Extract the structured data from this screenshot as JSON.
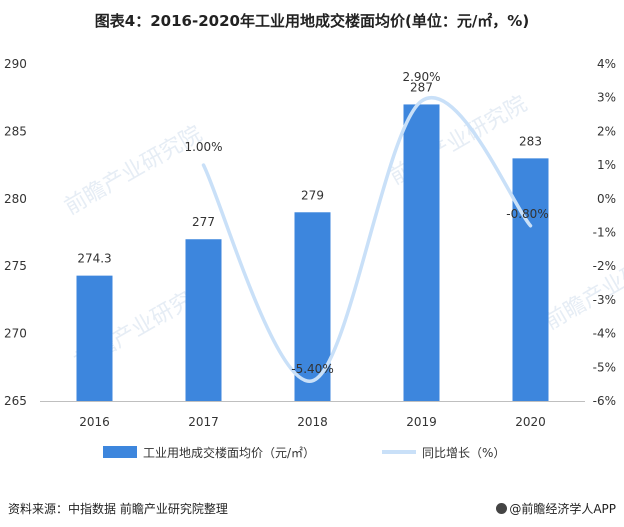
{
  "title": "图表4：2016-2020年工业用地成交楼面均价(单位：元/㎡，%)",
  "source": "资料来源：中指数据 前瞻产业研究院整理",
  "brand": "@前瞻经济学人APP",
  "watermark": "前瞻产业研究院",
  "colors": {
    "bar": "#3d86dd",
    "line": "#c9e0f8",
    "text": "#333333",
    "axis": "#999999"
  },
  "chart_data": {
    "type": "bar",
    "categories": [
      "2016",
      "2017",
      "2018",
      "2019",
      "2020"
    ],
    "series": [
      {
        "name": "工业用地成交楼面均价（元/㎡）",
        "type": "bar",
        "axis": "left",
        "values": [
          274.3,
          277,
          279,
          287,
          283
        ],
        "labels": [
          "274.3",
          "277",
          "279",
          "287",
          "283"
        ]
      },
      {
        "name": "同比增长（%）",
        "type": "line",
        "axis": "right",
        "smooth": true,
        "values": [
          null,
          1.0,
          -5.4,
          2.9,
          -0.8
        ],
        "labels": [
          "",
          "1.00%",
          "-5.40%",
          "2.90%",
          "-0.80%"
        ]
      }
    ],
    "y_left": {
      "min": 265,
      "max": 290,
      "ticks": [
        "265",
        "270",
        "275",
        "280",
        "285",
        "290"
      ]
    },
    "y_right": {
      "min": -6,
      "max": 4,
      "ticks": [
        "-6%",
        "-5%",
        "-4%",
        "-3%",
        "-2%",
        "-1%",
        "0%",
        "1%",
        "2%",
        "3%",
        "4%"
      ]
    },
    "grid": false,
    "legend": "bottom"
  }
}
